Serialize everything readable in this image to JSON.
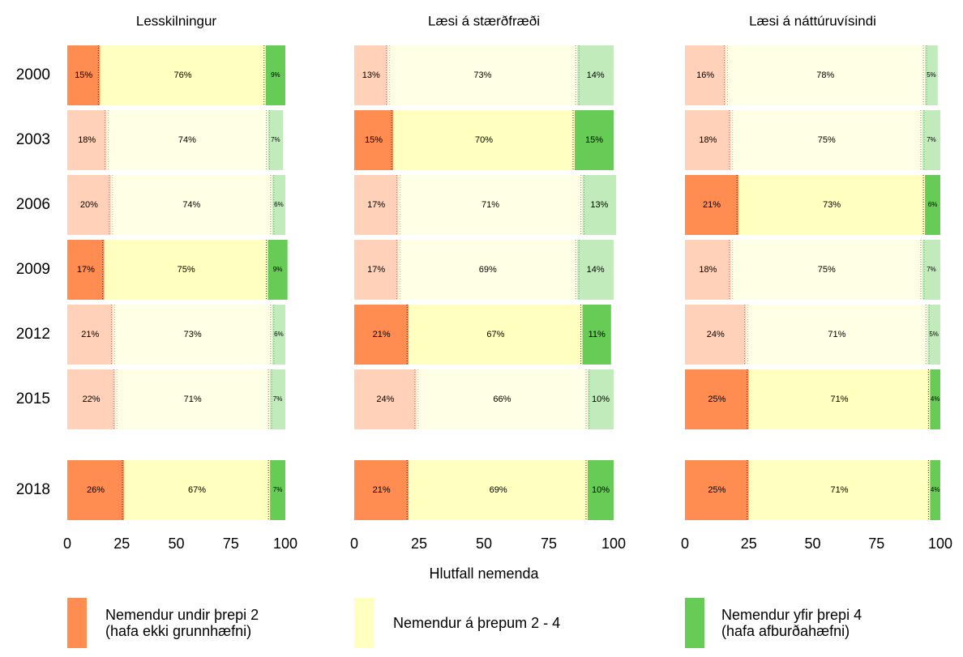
{
  "chart_data": [
    {
      "type": "stacked_barh",
      "title": "Lesskilningur",
      "categories": [
        "2000",
        "2003",
        "2006",
        "2009",
        "2012",
        "2015",
        "2018"
      ],
      "highlight": [
        true,
        false,
        false,
        true,
        false,
        false,
        true
      ],
      "xlim": [
        0,
        100
      ],
      "xticks": [
        0,
        25,
        50,
        75,
        100
      ],
      "series": [
        {
          "name": "Nemendur undir þrepi 2\n(hafa ekki grunnhæfni)",
          "color": "#ff8c50",
          "values": [
            15,
            18,
            20,
            17,
            21,
            22,
            26
          ],
          "value_labels": [
            "15%",
            "18%",
            "20%",
            "17%",
            "21%",
            "22%",
            "26%"
          ]
        },
        {
          "name": "Nemendur á þrepum 2 - 4",
          "color": "#ffffbf",
          "values": [
            76,
            74,
            74,
            75,
            73,
            71,
            67
          ],
          "value_labels": [
            "76%",
            "74%",
            "74%",
            "75%",
            "73%",
            "71%",
            "67%"
          ]
        },
        {
          "name": "Nemendur yfir þrepi 4\n(hafa afburðahæfni)",
          "color": "#66cc55",
          "values": [
            9,
            7,
            6,
            9,
            6,
            7,
            7
          ],
          "value_labels": [
            "9%",
            "7%",
            "6%",
            "9%",
            "6%",
            "7%",
            "7%"
          ]
        }
      ]
    },
    {
      "type": "stacked_barh",
      "title": "Læsi á stærðfræði",
      "xlabel": "Hlutfall nemenda",
      "highlight": [
        false,
        true,
        false,
        false,
        true,
        false,
        true
      ],
      "xlim": [
        0,
        100
      ],
      "xticks": [
        0,
        25,
        50,
        75,
        100
      ],
      "series": [
        {
          "color": "#ff8c50",
          "values": [
            13,
            15,
            17,
            17,
            21,
            24,
            21
          ],
          "value_labels": [
            "13%",
            "15%",
            "17%",
            "17%",
            "21%",
            "24%",
            "21%"
          ]
        },
        {
          "color": "#ffffbf",
          "values": [
            73,
            70,
            71,
            69,
            67,
            66,
            69
          ],
          "value_labels": [
            "73%",
            "70%",
            "71%",
            "69%",
            "67%",
            "66%",
            "69%"
          ]
        },
        {
          "color": "#66cc55",
          "values": [
            14,
            15,
            13,
            14,
            11,
            10,
            10
          ],
          "value_labels": [
            "14%",
            "15%",
            "13%",
            "14%",
            "11%",
            "10%",
            "10%"
          ]
        }
      ]
    },
    {
      "type": "stacked_barh",
      "title": "Læsi á náttúruvísindi",
      "highlight": [
        false,
        false,
        true,
        false,
        false,
        true,
        true
      ],
      "xlim": [
        0,
        100
      ],
      "xticks": [
        0,
        25,
        50,
        75,
        100
      ],
      "series": [
        {
          "color": "#ff8c50",
          "values": [
            16,
            18,
            21,
            18,
            24,
            25,
            25
          ],
          "value_labels": [
            "16%",
            "18%",
            "21%",
            "18%",
            "24%",
            "25%",
            "25%"
          ]
        },
        {
          "color": "#ffffbf",
          "values": [
            78,
            75,
            73,
            75,
            71,
            71,
            71
          ],
          "value_labels": [
            "78%",
            "75%",
            "73%",
            "75%",
            "71%",
            "71%",
            "71%"
          ]
        },
        {
          "color": "#66cc55",
          "values": [
            5,
            7,
            6,
            7,
            5,
            4,
            4
          ],
          "value_labels": [
            "5%",
            "7%",
            "6%",
            "7%",
            "5%",
            "4%",
            "4%"
          ]
        }
      ]
    }
  ]
}
